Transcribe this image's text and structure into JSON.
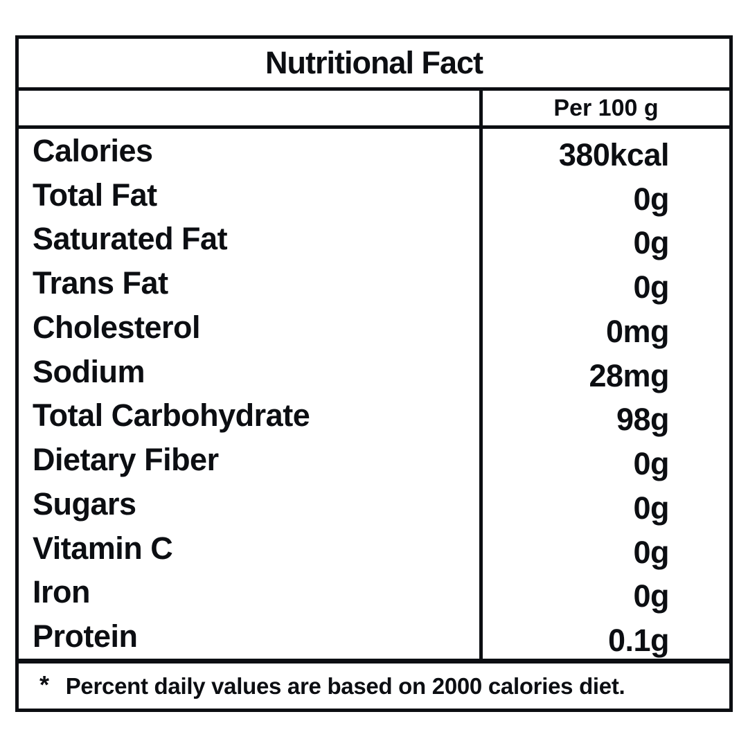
{
  "table": {
    "title": "Nutritional Fact",
    "column_header": "Per 100 g",
    "rows": [
      {
        "label": "Calories",
        "value": "380kcal"
      },
      {
        "label": "Total Fat",
        "value": "0g"
      },
      {
        "label": "Saturated Fat",
        "value": "0g"
      },
      {
        "label": "Trans Fat",
        "value": "0g"
      },
      {
        "label": "Cholesterol",
        "value": "0mg"
      },
      {
        "label": "Sodium",
        "value": "28mg"
      },
      {
        "label": "Total Carbohydrate",
        "value": "98g"
      },
      {
        "label": "Dietary Fiber",
        "value": "0g"
      },
      {
        "label": "Sugars",
        "value": "0g"
      },
      {
        "label": "Vitamin C",
        "value": "0g"
      },
      {
        "label": "Iron",
        "value": "0g"
      },
      {
        "label": "Protein",
        "value": "0.1g"
      }
    ],
    "footnote_marker": "*",
    "footnote": "Percent daily values are based on 2000 calories diet."
  },
  "colors": {
    "ink": "#0c0e12",
    "background": "#ffffff"
  }
}
